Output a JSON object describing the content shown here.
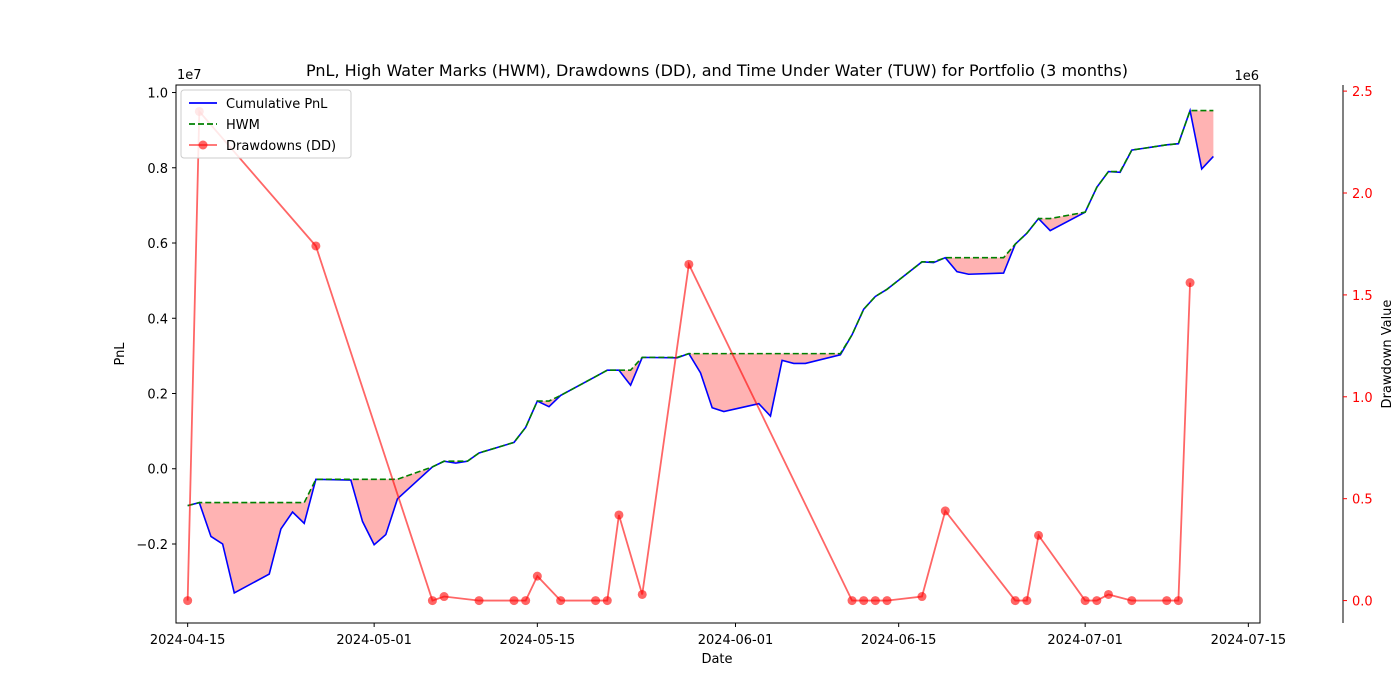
{
  "chart_data": {
    "type": "line",
    "title": "PnL, High Water Marks (HWM), Drawdowns (DD), and Time Under Water (TUW) for Portfolio (3 months)",
    "xlabel": "Date",
    "ylabel": "PnL",
    "y2label": "Drawdown Value",
    "y_offset_text": "1e7",
    "y2_offset_text": "1e6",
    "xlim": [
      0,
      93
    ],
    "ylim": [
      -4100000,
      10200000
    ],
    "y2lim": [
      -110000,
      2530000
    ],
    "x_ticks": [
      {
        "day": 1,
        "label": "2024-04-15"
      },
      {
        "day": 17,
        "label": "2024-05-01"
      },
      {
        "day": 31,
        "label": "2024-05-15"
      },
      {
        "day": 48,
        "label": "2024-06-01"
      },
      {
        "day": 62,
        "label": "2024-06-15"
      },
      {
        "day": 78,
        "label": "2024-07-01"
      },
      {
        "day": 92,
        "label": "2024-07-15"
      }
    ],
    "y_ticks": [
      {
        "value": -2000000,
        "label": "−0.2"
      },
      {
        "value": 0,
        "label": "0.0"
      },
      {
        "value": 2000000,
        "label": "0.2"
      },
      {
        "value": 4000000,
        "label": "0.4"
      },
      {
        "value": 6000000,
        "label": "0.6"
      },
      {
        "value": 8000000,
        "label": "0.8"
      },
      {
        "value": 10000000,
        "label": "1.0"
      }
    ],
    "y2_ticks": [
      {
        "value": 0,
        "label": "0.0"
      },
      {
        "value": 500000,
        "label": "0.5"
      },
      {
        "value": 1000000,
        "label": "1.0"
      },
      {
        "value": 1500000,
        "label": "1.5"
      },
      {
        "value": 2000000,
        "label": "2.0"
      },
      {
        "value": 2500000,
        "label": "2.5"
      }
    ],
    "colors": {
      "pnl": "#0000ff",
      "hwm": "#008000",
      "dd": "#ff0000",
      "fill": "#ffb3b3",
      "y2_axis": "#ff0000"
    },
    "legend": [
      "Cumulative PnL",
      "HWM",
      "Drawdowns (DD)"
    ],
    "legend_position": "upper-left",
    "series": [
      {
        "name": "Cumulative PnL",
        "points": [
          [
            1,
            -980000
          ],
          [
            2,
            -900000
          ],
          [
            3,
            -1800000
          ],
          [
            4,
            -2000000
          ],
          [
            5,
            -3300000
          ],
          [
            8,
            -2800000
          ],
          [
            9,
            -1600000
          ],
          [
            10,
            -1150000
          ],
          [
            11,
            -1450000
          ],
          [
            12,
            -280000
          ],
          [
            15,
            -300000
          ],
          [
            16,
            -1400000
          ],
          [
            17,
            -2020000
          ],
          [
            18,
            -1750000
          ],
          [
            19,
            -800000
          ],
          [
            22,
            50000
          ],
          [
            23,
            200000
          ],
          [
            24,
            150000
          ],
          [
            25,
            200000
          ],
          [
            26,
            420000
          ],
          [
            29,
            700000
          ],
          [
            30,
            1100000
          ],
          [
            31,
            1800000
          ],
          [
            32,
            1650000
          ],
          [
            33,
            1950000
          ],
          [
            36,
            2450000
          ],
          [
            37,
            2620000
          ],
          [
            38,
            2620000
          ],
          [
            39,
            2220000
          ],
          [
            40,
            2960000
          ],
          [
            43,
            2950000
          ],
          [
            44,
            3060000
          ],
          [
            45,
            2550000
          ],
          [
            46,
            1620000
          ],
          [
            47,
            1520000
          ],
          [
            50,
            1730000
          ],
          [
            51,
            1400000
          ],
          [
            52,
            2880000
          ],
          [
            53,
            2800000
          ],
          [
            54,
            2800000
          ],
          [
            57,
            3030000
          ],
          [
            58,
            3560000
          ],
          [
            59,
            4240000
          ],
          [
            60,
            4580000
          ],
          [
            61,
            4770000
          ],
          [
            64,
            5500000
          ],
          [
            65,
            5480000
          ],
          [
            66,
            5610000
          ],
          [
            67,
            5240000
          ],
          [
            68,
            5170000
          ],
          [
            71,
            5200000
          ],
          [
            72,
            5970000
          ],
          [
            73,
            6260000
          ],
          [
            74,
            6650000
          ],
          [
            75,
            6330000
          ],
          [
            78,
            6820000
          ],
          [
            79,
            7480000
          ],
          [
            80,
            7900000
          ],
          [
            81,
            7880000
          ],
          [
            82,
            8470000
          ],
          [
            85,
            8610000
          ],
          [
            86,
            8640000
          ],
          [
            87,
            9520000
          ],
          [
            88,
            7970000
          ],
          [
            89,
            8300000
          ]
        ]
      },
      {
        "name": "HWM",
        "points": [
          [
            1,
            -980000
          ],
          [
            2,
            -900000
          ],
          [
            3,
            -900000
          ],
          [
            4,
            -900000
          ],
          [
            5,
            -900000
          ],
          [
            8,
            -900000
          ],
          [
            9,
            -900000
          ],
          [
            10,
            -900000
          ],
          [
            11,
            -900000
          ],
          [
            12,
            -280000
          ],
          [
            15,
            -280000
          ],
          [
            16,
            -280000
          ],
          [
            17,
            -280000
          ],
          [
            18,
            -280000
          ],
          [
            19,
            -280000
          ],
          [
            22,
            50000
          ],
          [
            23,
            200000
          ],
          [
            24,
            200000
          ],
          [
            25,
            200000
          ],
          [
            26,
            420000
          ],
          [
            29,
            700000
          ],
          [
            30,
            1100000
          ],
          [
            31,
            1800000
          ],
          [
            32,
            1800000
          ],
          [
            33,
            1950000
          ],
          [
            36,
            2450000
          ],
          [
            37,
            2620000
          ],
          [
            38,
            2620000
          ],
          [
            39,
            2620000
          ],
          [
            40,
            2960000
          ],
          [
            43,
            2960000
          ],
          [
            44,
            3060000
          ],
          [
            45,
            3060000
          ],
          [
            46,
            3060000
          ],
          [
            47,
            3060000
          ],
          [
            50,
            3060000
          ],
          [
            51,
            3060000
          ],
          [
            52,
            3060000
          ],
          [
            53,
            3060000
          ],
          [
            54,
            3060000
          ],
          [
            57,
            3060000
          ],
          [
            58,
            3560000
          ],
          [
            59,
            4240000
          ],
          [
            60,
            4580000
          ],
          [
            61,
            4770000
          ],
          [
            64,
            5500000
          ],
          [
            65,
            5500000
          ],
          [
            66,
            5610000
          ],
          [
            67,
            5610000
          ],
          [
            68,
            5610000
          ],
          [
            71,
            5610000
          ],
          [
            72,
            5970000
          ],
          [
            73,
            6260000
          ],
          [
            74,
            6650000
          ],
          [
            75,
            6650000
          ],
          [
            78,
            6820000
          ],
          [
            79,
            7480000
          ],
          [
            80,
            7900000
          ],
          [
            81,
            7900000
          ],
          [
            82,
            8470000
          ],
          [
            85,
            8610000
          ],
          [
            86,
            8640000
          ],
          [
            87,
            9520000
          ],
          [
            88,
            9520000
          ],
          [
            89,
            9520000
          ]
        ]
      },
      {
        "name": "Drawdowns (DD)",
        "axis": "right",
        "points": [
          [
            1,
            0
          ],
          [
            2,
            2400000
          ],
          [
            12,
            1740000
          ],
          [
            22,
            0
          ],
          [
            23,
            20000
          ],
          [
            26,
            0
          ],
          [
            29,
            0
          ],
          [
            30,
            0
          ],
          [
            31,
            120000
          ],
          [
            33,
            0
          ],
          [
            36,
            0
          ],
          [
            37,
            0
          ],
          [
            38,
            420000
          ],
          [
            40,
            30000
          ],
          [
            44,
            1650000
          ],
          [
            58,
            0
          ],
          [
            59,
            0
          ],
          [
            60,
            0
          ],
          [
            61,
            0
          ],
          [
            64,
            20000
          ],
          [
            66,
            440000
          ],
          [
            72,
            0
          ],
          [
            73,
            0
          ],
          [
            74,
            320000
          ],
          [
            78,
            0
          ],
          [
            79,
            0
          ],
          [
            80,
            30000
          ],
          [
            82,
            0
          ],
          [
            85,
            0
          ],
          [
            86,
            0
          ],
          [
            87,
            1560000
          ]
        ]
      }
    ]
  }
}
